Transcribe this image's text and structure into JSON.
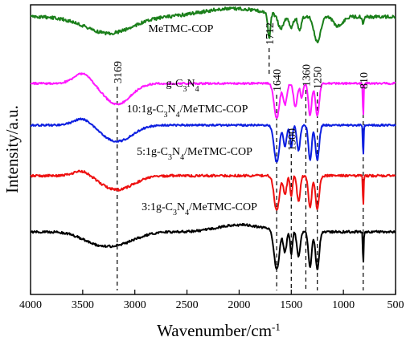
{
  "chart_data": {
    "type": "line",
    "title": "",
    "xlabel": "Wavenumber/cm",
    "xlabel_superscript": "-1",
    "ylabel": "Intensity/a.u.",
    "xlim": [
      4000,
      500
    ],
    "x_reversed": true,
    "xticks": [
      4000,
      3500,
      3000,
      2500,
      2000,
      1500,
      1000,
      500
    ],
    "y_ticks_shown": false,
    "grid": false,
    "legend": "none",
    "series": [
      {
        "label_parts": [
          "MeTMC-COP"
        ],
        "color": "#1a7f1a",
        "offset": 4,
        "base": 0.85,
        "slope": 0.0,
        "noise": 0.035,
        "bands": [
          {
            "center": 3250,
            "width": 320,
            "depth": 0.35
          },
          {
            "center": 2050,
            "width": 420,
            "depth": -0.18
          },
          {
            "center": 1712,
            "width": 18,
            "depth": 0.55
          },
          {
            "center": 1600,
            "width": 40,
            "depth": 0.3
          },
          {
            "center": 1500,
            "width": 30,
            "depth": 0.25
          },
          {
            "center": 1420,
            "width": 25,
            "depth": 0.3
          },
          {
            "center": 1250,
            "width": 45,
            "depth": 0.55
          },
          {
            "center": 1050,
            "width": 60,
            "depth": 0.2
          },
          {
            "center": 810,
            "width": 10,
            "depth": 0.15
          }
        ]
      },
      {
        "label_parts": [
          "g-C",
          "3",
          "N",
          "4"
        ],
        "color": "#ff1aff",
        "offset": 3,
        "base": 0.7,
        "slope": 0.0,
        "noise": 0.02,
        "bands": [
          {
            "center": 3500,
            "width": 120,
            "depth": -0.22
          },
          {
            "center": 3169,
            "width": 180,
            "depth": 0.45
          },
          {
            "center": 1640,
            "width": 35,
            "depth": 0.75
          },
          {
            "center": 1560,
            "width": 25,
            "depth": 0.45
          },
          {
            "center": 1460,
            "width": 25,
            "depth": 0.5
          },
          {
            "center": 1400,
            "width": 18,
            "depth": 0.3
          },
          {
            "center": 1320,
            "width": 22,
            "depth": 0.7
          },
          {
            "center": 1250,
            "width": 25,
            "depth": 0.7
          },
          {
            "center": 810,
            "width": 6,
            "depth": 0.75
          }
        ]
      },
      {
        "label_parts": [
          "10:1g-C",
          "3",
          "N",
          "4",
          "/MeTMC-COP"
        ],
        "color": "#0d1fe0",
        "offset": 2,
        "base": 0.72,
        "slope": 0.0,
        "noise": 0.02,
        "bands": [
          {
            "center": 3500,
            "width": 120,
            "depth": -0.15
          },
          {
            "center": 3169,
            "width": 200,
            "depth": 0.35
          },
          {
            "center": 1640,
            "width": 35,
            "depth": 0.8
          },
          {
            "center": 1560,
            "width": 22,
            "depth": 0.45
          },
          {
            "center": 1500,
            "width": 15,
            "depth": 0.5
          },
          {
            "center": 1430,
            "width": 22,
            "depth": 0.55
          },
          {
            "center": 1320,
            "width": 22,
            "depth": 0.75
          },
          {
            "center": 1250,
            "width": 25,
            "depth": 0.75
          },
          {
            "center": 810,
            "width": 6,
            "depth": 0.7
          }
        ]
      },
      {
        "label_parts": [
          "5:1g-C",
          "3",
          "N",
          "4",
          "/MeTMC-COP"
        ],
        "color": "#ee1111",
        "offset": 1,
        "base": 0.72,
        "slope": 0.0,
        "noise": 0.025,
        "bands": [
          {
            "center": 3500,
            "width": 120,
            "depth": -0.12
          },
          {
            "center": 3169,
            "width": 220,
            "depth": 0.3
          },
          {
            "center": 1640,
            "width": 35,
            "depth": 0.75
          },
          {
            "center": 1560,
            "width": 22,
            "depth": 0.4
          },
          {
            "center": 1500,
            "width": 15,
            "depth": 0.45
          },
          {
            "center": 1430,
            "width": 22,
            "depth": 0.55
          },
          {
            "center": 1320,
            "width": 22,
            "depth": 0.7
          },
          {
            "center": 1250,
            "width": 25,
            "depth": 0.72
          },
          {
            "center": 810,
            "width": 6,
            "depth": 0.65
          }
        ]
      },
      {
        "label_parts": [
          "3:1g-C",
          "3",
          "N",
          "4",
          "/MeTMC-COP"
        ],
        "color": "#000000",
        "offset": 0,
        "base": 0.75,
        "slope": 0.0,
        "noise": 0.025,
        "bands": [
          {
            "center": 3400,
            "width": 200,
            "depth": 0.15
          },
          {
            "center": 3169,
            "width": 250,
            "depth": 0.25
          },
          {
            "center": 1990,
            "width": 300,
            "depth": -0.15
          },
          {
            "center": 1640,
            "width": 35,
            "depth": 0.85
          },
          {
            "center": 1560,
            "width": 22,
            "depth": 0.45
          },
          {
            "center": 1500,
            "width": 15,
            "depth": 0.5
          },
          {
            "center": 1430,
            "width": 22,
            "depth": 0.55
          },
          {
            "center": 1320,
            "width": 22,
            "depth": 0.75
          },
          {
            "center": 1250,
            "width": 25,
            "depth": 0.8
          },
          {
            "center": 810,
            "width": 6,
            "depth": 0.7
          }
        ]
      }
    ],
    "reference_lines": [
      {
        "x": 3169,
        "label": "3169"
      },
      {
        "x": 1712,
        "label": "1712"
      },
      {
        "x": 1640,
        "label": "1640"
      },
      {
        "x": 1500,
        "label": "1500"
      },
      {
        "x": 1360,
        "label": "1360"
      },
      {
        "x": 1250,
        "label": "1250"
      },
      {
        "x": 810,
        "label": "810"
      }
    ]
  }
}
